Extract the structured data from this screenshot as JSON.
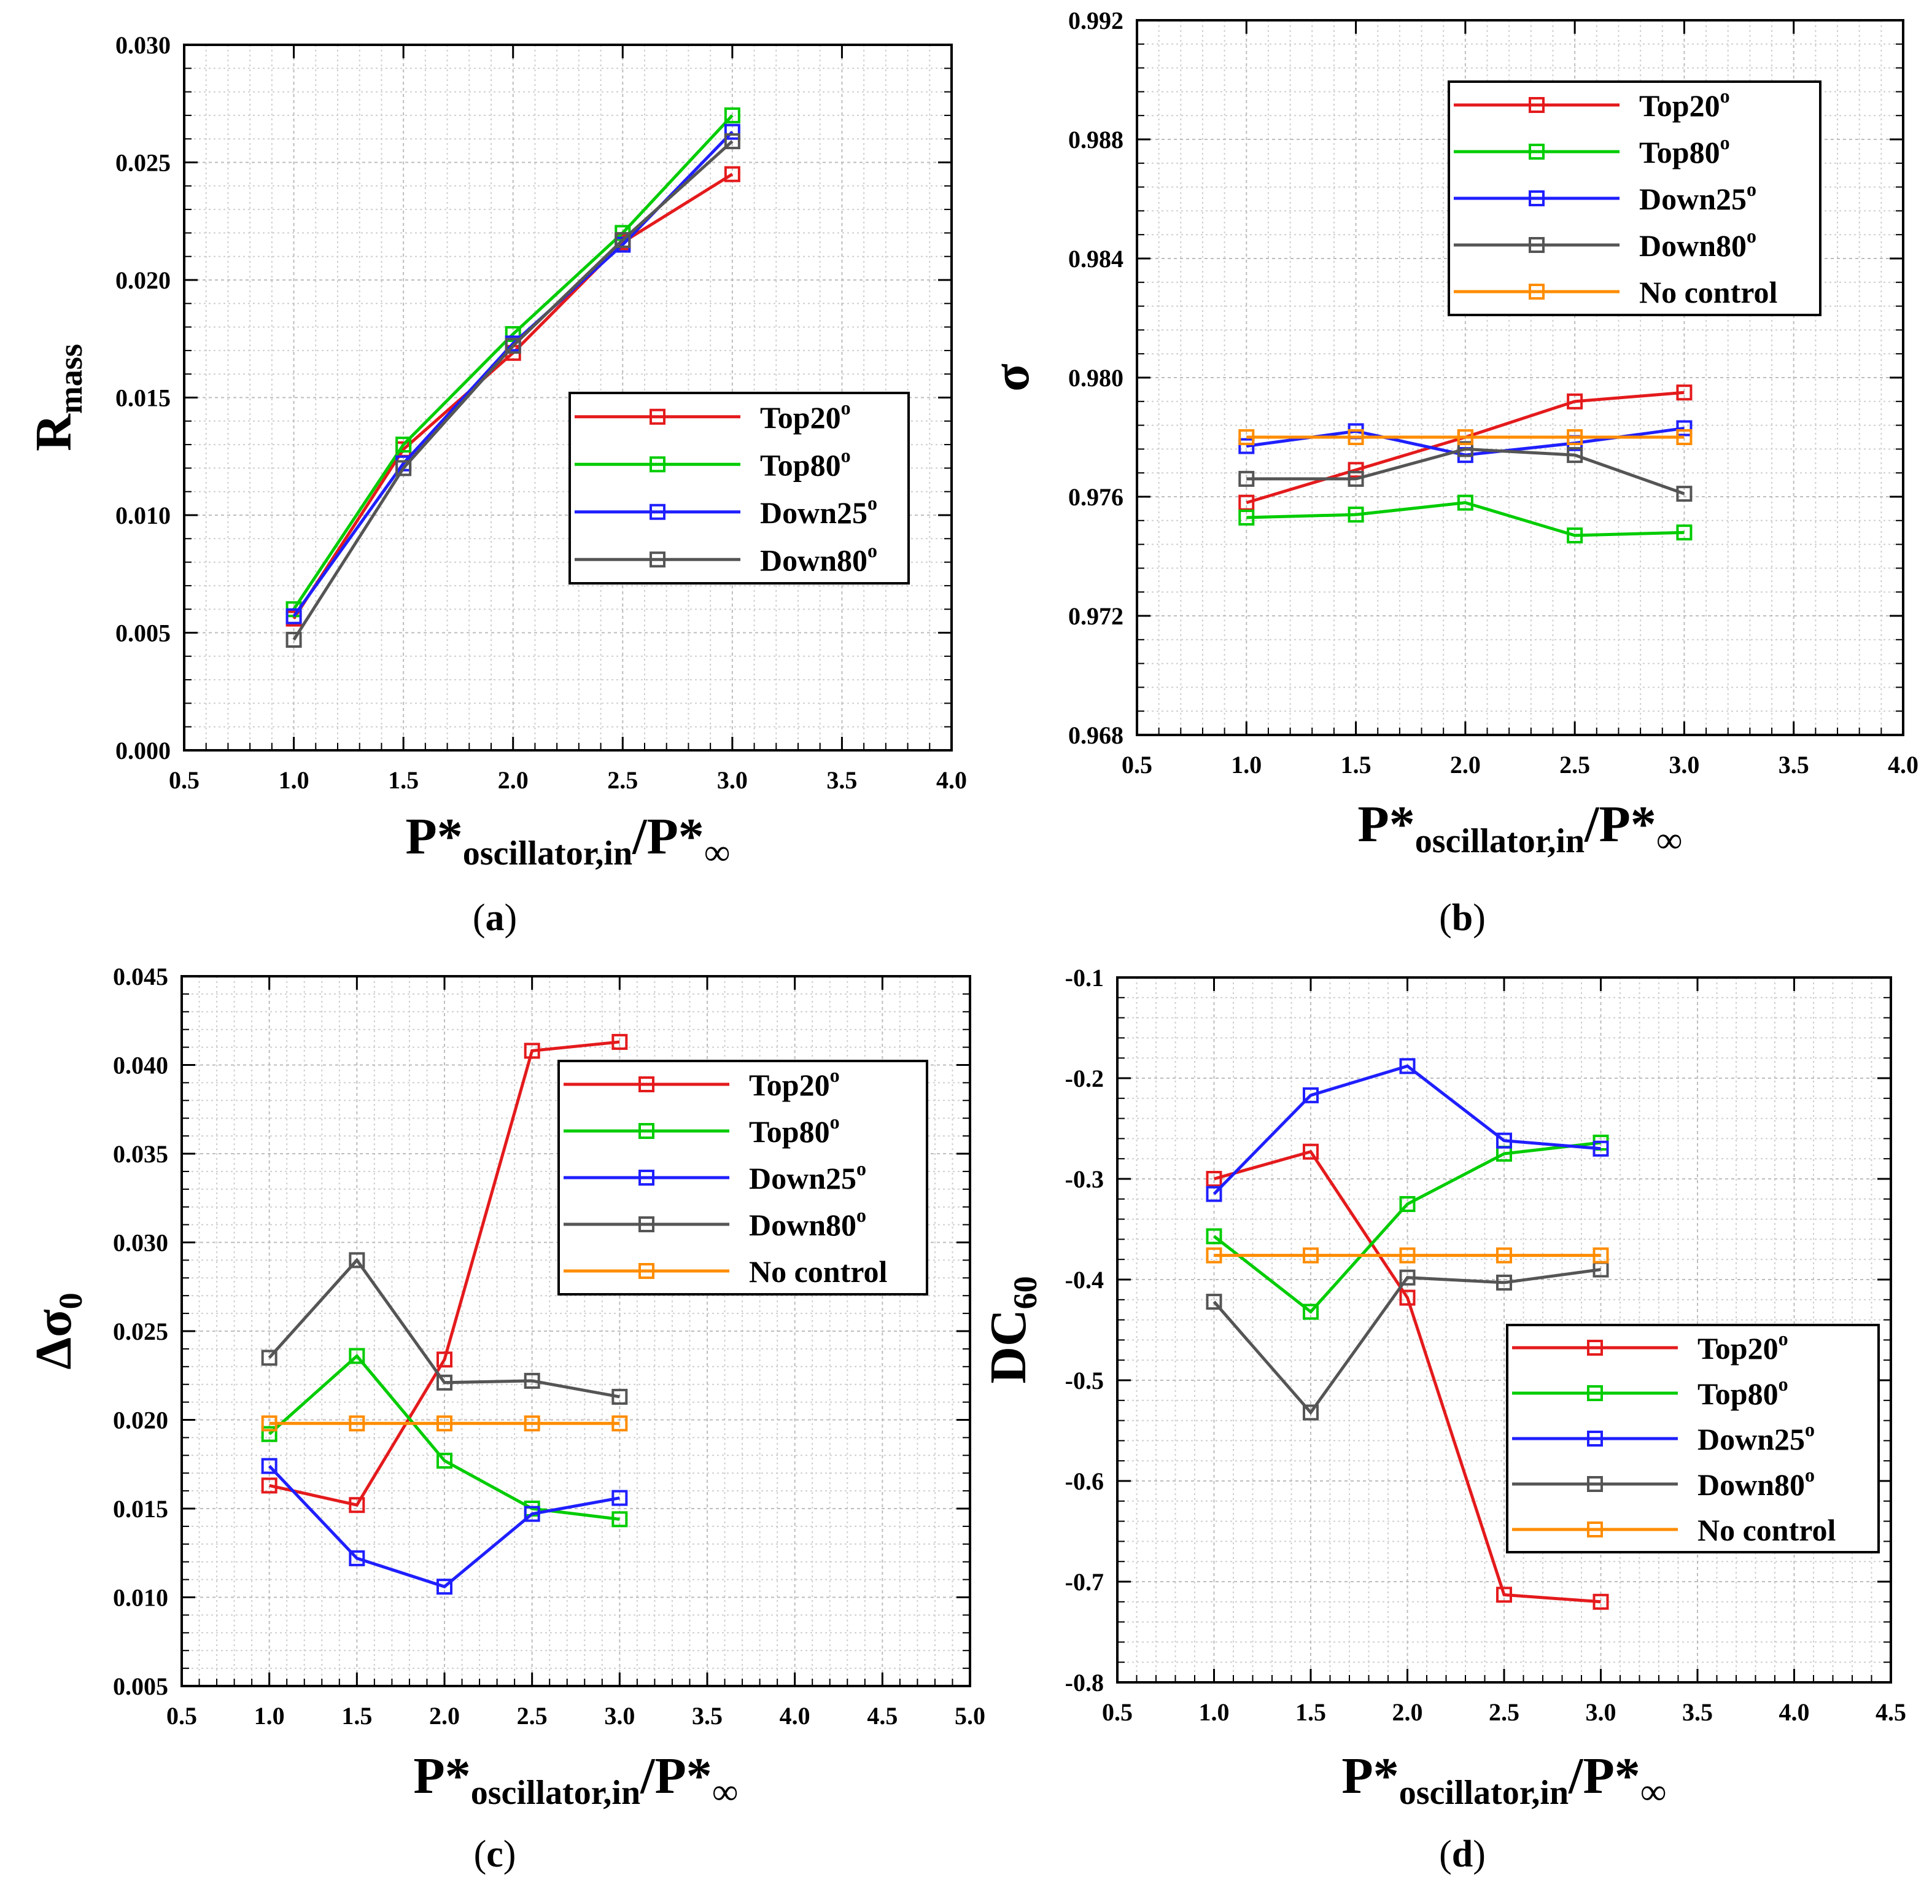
{
  "figure": {
    "captions": [
      "(a)",
      "(b)",
      "(c)",
      "(d)"
    ]
  },
  "colors": {
    "Top20": "#e41a1c",
    "Top80": "#00cc00",
    "Down25": "#1f1fff",
    "Down80": "#555555",
    "No control": "#ff8c00"
  },
  "chart_data": [
    {
      "id": "a",
      "type": "line",
      "caption": "(a)",
      "ylabel": {
        "main": "R",
        "sub": "mass"
      },
      "xlabel": {
        "main": "P*",
        "sub": "oscillator,in",
        "tail": "/P*",
        "tailsub": "∞"
      },
      "x": [
        1.0,
        1.5,
        2.0,
        2.5,
        3.0
      ],
      "xlim": [
        0.5,
        4.0
      ],
      "xticks": [
        0.5,
        1.0,
        1.5,
        2.0,
        2.5,
        3.0,
        3.5,
        4.0
      ],
      "xtick_labels": [
        "0.5",
        "1.0",
        "1.5",
        "2.0",
        "2.5",
        "3.0",
        "3.5",
        "4.0"
      ],
      "ylim": [
        0.0,
        0.03
      ],
      "yticks": [
        0.0,
        0.005,
        0.01,
        0.015,
        0.02,
        0.025,
        0.03
      ],
      "ytick_labels": [
        "0.000",
        "0.005",
        "0.010",
        "0.015",
        "0.020",
        "0.025",
        "0.030"
      ],
      "grid": true,
      "legend_position": "center-right",
      "series": [
        {
          "name": "Top20",
          "label": "Top20",
          "sup": "o",
          "values": [
            0.0056,
            0.0128,
            0.0169,
            0.0216,
            0.0245
          ]
        },
        {
          "name": "Top80",
          "label": "Top80",
          "sup": "o",
          "values": [
            0.006,
            0.013,
            0.0177,
            0.022,
            0.027
          ]
        },
        {
          "name": "Down25",
          "label": "Down25",
          "sup": "o",
          "values": [
            0.0057,
            0.0122,
            0.0173,
            0.0215,
            0.0263
          ]
        },
        {
          "name": "Down80",
          "label": "Down80",
          "sup": "o",
          "values": [
            0.0047,
            0.012,
            0.0172,
            0.0217,
            0.0259
          ]
        }
      ]
    },
    {
      "id": "b",
      "type": "line",
      "caption": "(b)",
      "ylabel": {
        "main": "σ",
        "sub": ""
      },
      "xlabel": {
        "main": "P*",
        "sub": "oscillator,in",
        "tail": "/P*",
        "tailsub": "∞"
      },
      "x": [
        1.0,
        1.5,
        2.0,
        2.5,
        3.0
      ],
      "xlim": [
        0.5,
        4.0
      ],
      "xticks": [
        0.5,
        1.0,
        1.5,
        2.0,
        2.5,
        3.0,
        3.5,
        4.0
      ],
      "xtick_labels": [
        "0.5",
        "1.0",
        "1.5",
        "2.0",
        "2.5",
        "3.0",
        "3.5",
        "4.0"
      ],
      "ylim": [
        0.968,
        0.992
      ],
      "yticks": [
        0.968,
        0.972,
        0.976,
        0.98,
        0.984,
        0.988,
        0.992
      ],
      "ytick_labels": [
        "0.968",
        "0.972",
        "0.976",
        "0.980",
        "0.984",
        "0.988",
        "0.992"
      ],
      "grid": true,
      "legend_position": "top-right",
      "series": [
        {
          "name": "Top20",
          "label": "Top20",
          "sup": "o",
          "values": [
            0.9758,
            0.9769,
            0.978,
            0.9792,
            0.9795
          ]
        },
        {
          "name": "Top80",
          "label": "Top80",
          "sup": "o",
          "values": [
            0.9753,
            0.9754,
            0.9758,
            0.9747,
            0.9748
          ]
        },
        {
          "name": "Down25",
          "label": "Down25",
          "sup": "o",
          "values": [
            0.9777,
            0.9782,
            0.9774,
            0.9778,
            0.9783
          ]
        },
        {
          "name": "Down80",
          "label": "Down80",
          "sup": "o",
          "values": [
            0.9766,
            0.9766,
            0.9776,
            0.9774,
            0.9761
          ]
        },
        {
          "name": "No control",
          "label": "No control",
          "sup": "",
          "values": [
            0.978,
            0.978,
            0.978,
            0.978,
            0.978
          ]
        }
      ]
    },
    {
      "id": "c",
      "type": "line",
      "caption": "(c)",
      "ylabel": {
        "main": "Δσ",
        "sub": "0"
      },
      "xlabel": {
        "main": "P*",
        "sub": "oscillator,in",
        "tail": "/P*",
        "tailsub": "∞"
      },
      "x": [
        1.0,
        1.5,
        2.0,
        2.5,
        3.0
      ],
      "xlim": [
        0.5,
        5.0
      ],
      "xticks": [
        0.5,
        1.0,
        1.5,
        2.0,
        2.5,
        3.0,
        3.5,
        4.0,
        4.5,
        5.0
      ],
      "xtick_labels": [
        "0.5",
        "1.0",
        "1.5",
        "2.0",
        "2.5",
        "3.0",
        "3.5",
        "4.0",
        "4.5",
        "5.0"
      ],
      "ylim": [
        0.005,
        0.045
      ],
      "yticks": [
        0.005,
        0.01,
        0.015,
        0.02,
        0.025,
        0.03,
        0.035,
        0.04,
        0.045
      ],
      "ytick_labels": [
        "0.005",
        "0.010",
        "0.015",
        "0.020",
        "0.025",
        "0.030",
        "0.035",
        "0.040",
        "0.045"
      ],
      "grid": true,
      "legend_position": "upper-right",
      "series": [
        {
          "name": "Top20",
          "label": "Top20",
          "sup": "o",
          "values": [
            0.0163,
            0.0152,
            0.0234,
            0.0408,
            0.0413
          ]
        },
        {
          "name": "Top80",
          "label": "Top80",
          "sup": "o",
          "values": [
            0.0192,
            0.0236,
            0.0177,
            0.015,
            0.0144
          ]
        },
        {
          "name": "Down25",
          "label": "Down25",
          "sup": "o",
          "values": [
            0.0174,
            0.0122,
            0.0106,
            0.0147,
            0.0156
          ]
        },
        {
          "name": "Down80",
          "label": "Down80",
          "sup": "o",
          "values": [
            0.0235,
            0.029,
            0.0221,
            0.0222,
            0.0213
          ]
        },
        {
          "name": "No control",
          "label": "No control",
          "sup": "",
          "values": [
            0.0198,
            0.0198,
            0.0198,
            0.0198,
            0.0198
          ]
        }
      ]
    },
    {
      "id": "d",
      "type": "line",
      "caption": "(d)",
      "ylabel": {
        "main": "DC",
        "sub": "60"
      },
      "xlabel": {
        "main": "P*",
        "sub": "oscillator,in",
        "tail": "/P*",
        "tailsub": "∞"
      },
      "x": [
        1.0,
        1.5,
        2.0,
        2.5,
        3.0
      ],
      "xlim": [
        0.5,
        4.5
      ],
      "xticks": [
        0.5,
        1.0,
        1.5,
        2.0,
        2.5,
        3.0,
        3.5,
        4.0,
        4.5
      ],
      "xtick_labels": [
        "0.5",
        "1.0",
        "1.5",
        "2.0",
        "2.5",
        "3.0",
        "3.5",
        "4.0",
        "4.5"
      ],
      "ylim": [
        -0.8,
        -0.1
      ],
      "yticks": [
        -0.8,
        -0.7,
        -0.6,
        -0.5,
        -0.4,
        -0.3,
        -0.2,
        -0.1
      ],
      "ytick_labels": [
        "-0.8",
        "-0.7",
        "-0.6",
        "-0.5",
        "-0.4",
        "-0.3",
        "-0.2",
        "-0.1"
      ],
      "grid": true,
      "legend_position": "lower-right",
      "series": [
        {
          "name": "Top20",
          "label": "Top20",
          "sup": "o",
          "values": [
            -0.3,
            -0.273,
            -0.418,
            -0.713,
            -0.72
          ]
        },
        {
          "name": "Top80",
          "label": "Top80",
          "sup": "o",
          "values": [
            -0.357,
            -0.432,
            -0.325,
            -0.275,
            -0.264
          ]
        },
        {
          "name": "Down25",
          "label": "Down25",
          "sup": "o",
          "values": [
            -0.315,
            -0.217,
            -0.188,
            -0.262,
            -0.27
          ]
        },
        {
          "name": "Down80",
          "label": "Down80",
          "sup": "o",
          "values": [
            -0.422,
            -0.532,
            -0.398,
            -0.403,
            -0.39
          ]
        },
        {
          "name": "No control",
          "label": "No control",
          "sup": "",
          "values": [
            -0.376,
            -0.376,
            -0.376,
            -0.376,
            -0.376
          ]
        }
      ]
    }
  ]
}
